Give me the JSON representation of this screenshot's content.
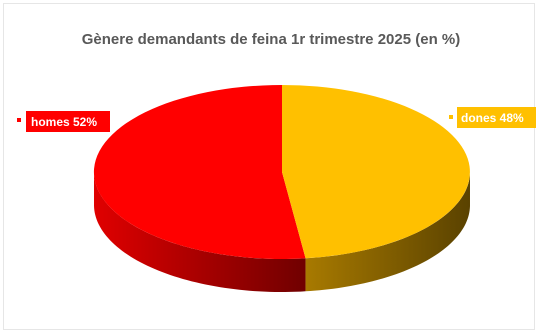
{
  "chart_data": {
    "type": "pie",
    "title": "Gènere demandants de feina 1r trimestre 2025 (en %)",
    "slices": [
      {
        "label": "homes",
        "value": 52,
        "display": "homes 52%",
        "color": "#ff0000",
        "side_color": "#c00000"
      },
      {
        "label": "dones",
        "value": 48,
        "display": "dones 48%",
        "color": "#ffc000",
        "side_color": "#9c7400"
      }
    ],
    "legend": "none",
    "style": "3d-pie",
    "label_placement": "outside-with-marker"
  }
}
